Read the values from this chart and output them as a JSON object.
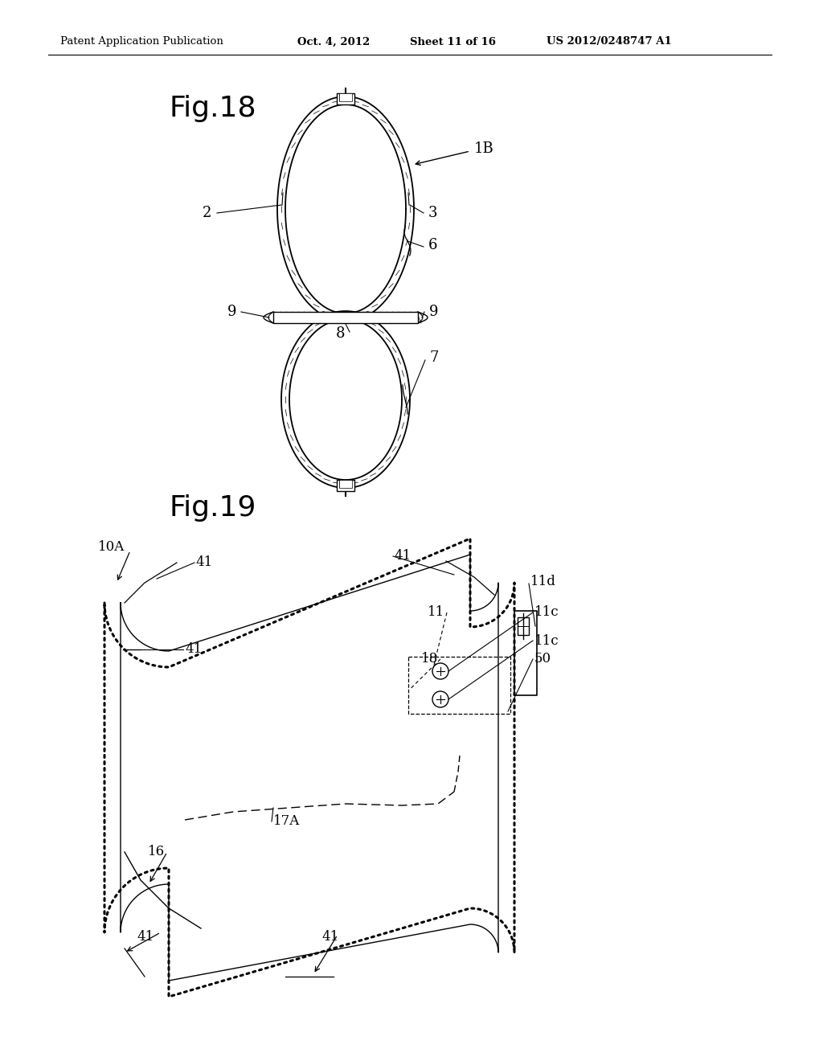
{
  "bg_color": "#ffffff",
  "header_left": "Patent Application Publication",
  "header_mid": "Oct. 4, 2012",
  "header_mid2": "Sheet 11 of 16",
  "header_right": "US 2012/0248747 A1",
  "fig18_title": "Fig.18",
  "fig19_title": "Fig.19",
  "fig_width": 10.24,
  "fig_height": 13.2
}
